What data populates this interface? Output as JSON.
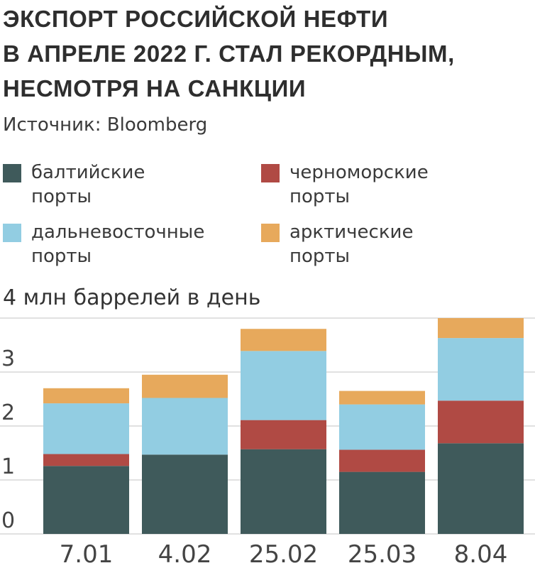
{
  "title_lines": [
    "ЭКСПОРТ РОССИЙСКОЙ НЕФТИ",
    "В АПРЕЛЕ 2022 Г. СТАЛ РЕКОРДНЫМ,",
    "НЕСМОТРЯ НА САНКЦИИ"
  ],
  "source": "Источник: Bloomberg",
  "legend": [
    {
      "line1": "балтийские",
      "line2": "порты",
      "color": "#3f5a5b"
    },
    {
      "line1": "черноморские",
      "line2": "порты",
      "color": "#b04a44"
    },
    {
      "line1": "дальневосточные",
      "line2": "порты",
      "color": "#92cde2"
    },
    {
      "line1": "арктические",
      "line2": "порты",
      "color": "#e7a95c"
    }
  ],
  "unit_label": "4 млн баррелей в день",
  "chart_data": {
    "type": "bar",
    "stacked": true,
    "categories": [
      "7.01",
      "4.02",
      "25.02",
      "25.03",
      "8.04"
    ],
    "series": [
      {
        "name": "балтийские порты",
        "color": "#3f5a5b",
        "values": [
          1.26,
          1.47,
          1.57,
          1.15,
          1.68
        ]
      },
      {
        "name": "черноморские порты",
        "color": "#b04a44",
        "values": [
          0.22,
          0.0,
          0.54,
          0.41,
          0.79
        ]
      },
      {
        "name": "дальневосточные порты",
        "color": "#92cde2",
        "values": [
          0.94,
          1.05,
          1.28,
          0.84,
          1.16
        ]
      },
      {
        "name": "арктические порты",
        "color": "#e7a95c",
        "values": [
          0.28,
          0.43,
          0.41,
          0.25,
          0.37
        ]
      }
    ],
    "y_ticks": [
      "0",
      "1",
      "2",
      "3"
    ],
    "y_tick_values": [
      0,
      1,
      2,
      3
    ],
    "ylim": [
      0,
      4
    ],
    "ylabel": "4 млн баррелей в день",
    "grid": true
  }
}
